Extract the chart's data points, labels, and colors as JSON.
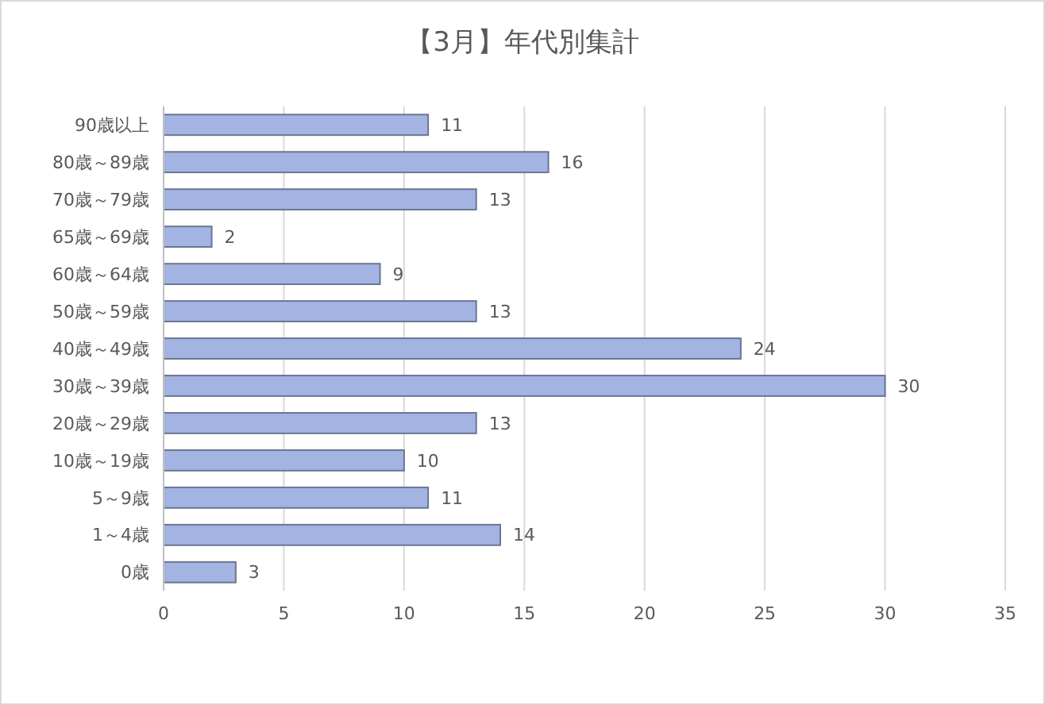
{
  "chart_data": {
    "type": "bar",
    "orientation": "horizontal",
    "title": "【3月】年代別集計",
    "categories": [
      "90歳以上",
      "80歳～89歳",
      "70歳～79歳",
      "65歳～69歳",
      "60歳～64歳",
      "50歳～59歳",
      "40歳～49歳",
      "30歳～39歳",
      "20歳～29歳",
      "10歳～19歳",
      "5～9歳",
      "1～4歳",
      "0歳"
    ],
    "values": [
      11,
      16,
      13,
      2,
      9,
      13,
      24,
      30,
      13,
      10,
      11,
      14,
      3
    ],
    "color": "#a4b4e2",
    "xlim": [
      0,
      35
    ],
    "xticks": [
      0,
      5,
      10,
      15,
      20,
      25,
      30,
      35
    ],
    "grid": "x",
    "data_labels": true
  }
}
